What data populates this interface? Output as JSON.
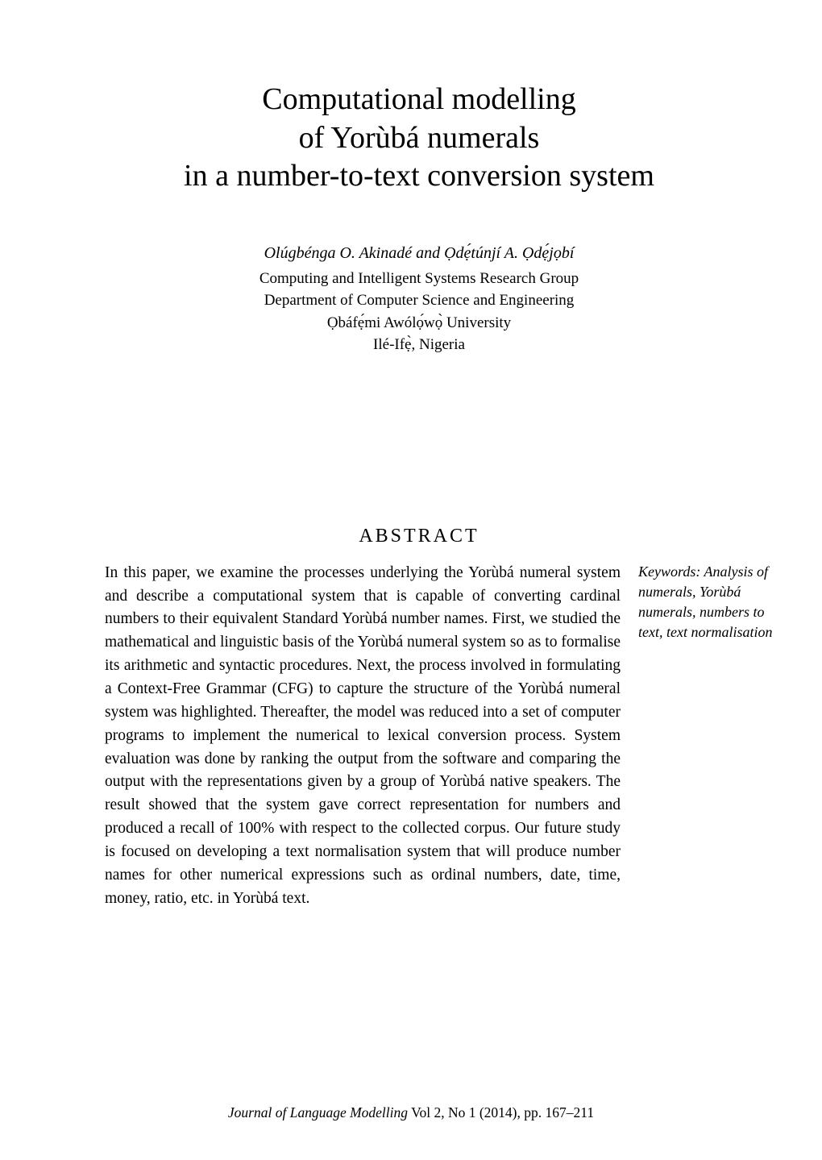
{
  "title": {
    "line1": "Computational modelling",
    "line2": "of Yorùbá numerals",
    "line3": "in a number-to-text conversion system"
  },
  "authors": "Olúgbénga O. Akinadé and Ọdẹ́túnjí A. Ọdẹ́jọbí",
  "affiliation": {
    "line1": "Computing and Intelligent Systems Research Group",
    "line2": "Department of Computer Science and Engineering",
    "line3": "Ọbáfẹ́mi Awólọ́wọ̀ University",
    "line4": "Ilé-Ifẹ̀, Nigeria"
  },
  "abstract_heading": "ABSTRACT",
  "abstract_body": "In this paper, we examine the processes underlying the Yorùbá numeral system and describe a computational system that is capable of converting cardinal numbers to their equivalent Standard Yorùbá number names. First, we studied the mathematical and linguistic basis of the Yorùbá numeral system so as to formalise its arithmetic and syntactic procedures. Next, the process involved in formulating a Context-Free Grammar (CFG) to capture the structure of the Yorùbá numeral system was highlighted. Thereafter, the model was reduced into a set of computer programs to implement the numerical to lexical conversion process. System evaluation was done by ranking the output from the software and comparing the output with the representations given by a group of Yorùbá native speakers. The result showed that the system gave correct representation for numbers and produced a recall of 100% with respect to the collected corpus. Our future study is focused on developing a text normalisation system that will produce number names for other numerical expressions such as ordinal numbers, date, time, money, ratio, etc. in Yorùbá text.",
  "keywords": "Keywords: Analysis of numerals, Yorùbá numerals, numbers to text, text normalisation",
  "footer": {
    "journal": "Journal of Language Modelling",
    "details": " Vol 2, No 1 (2014), pp. 167–211"
  }
}
